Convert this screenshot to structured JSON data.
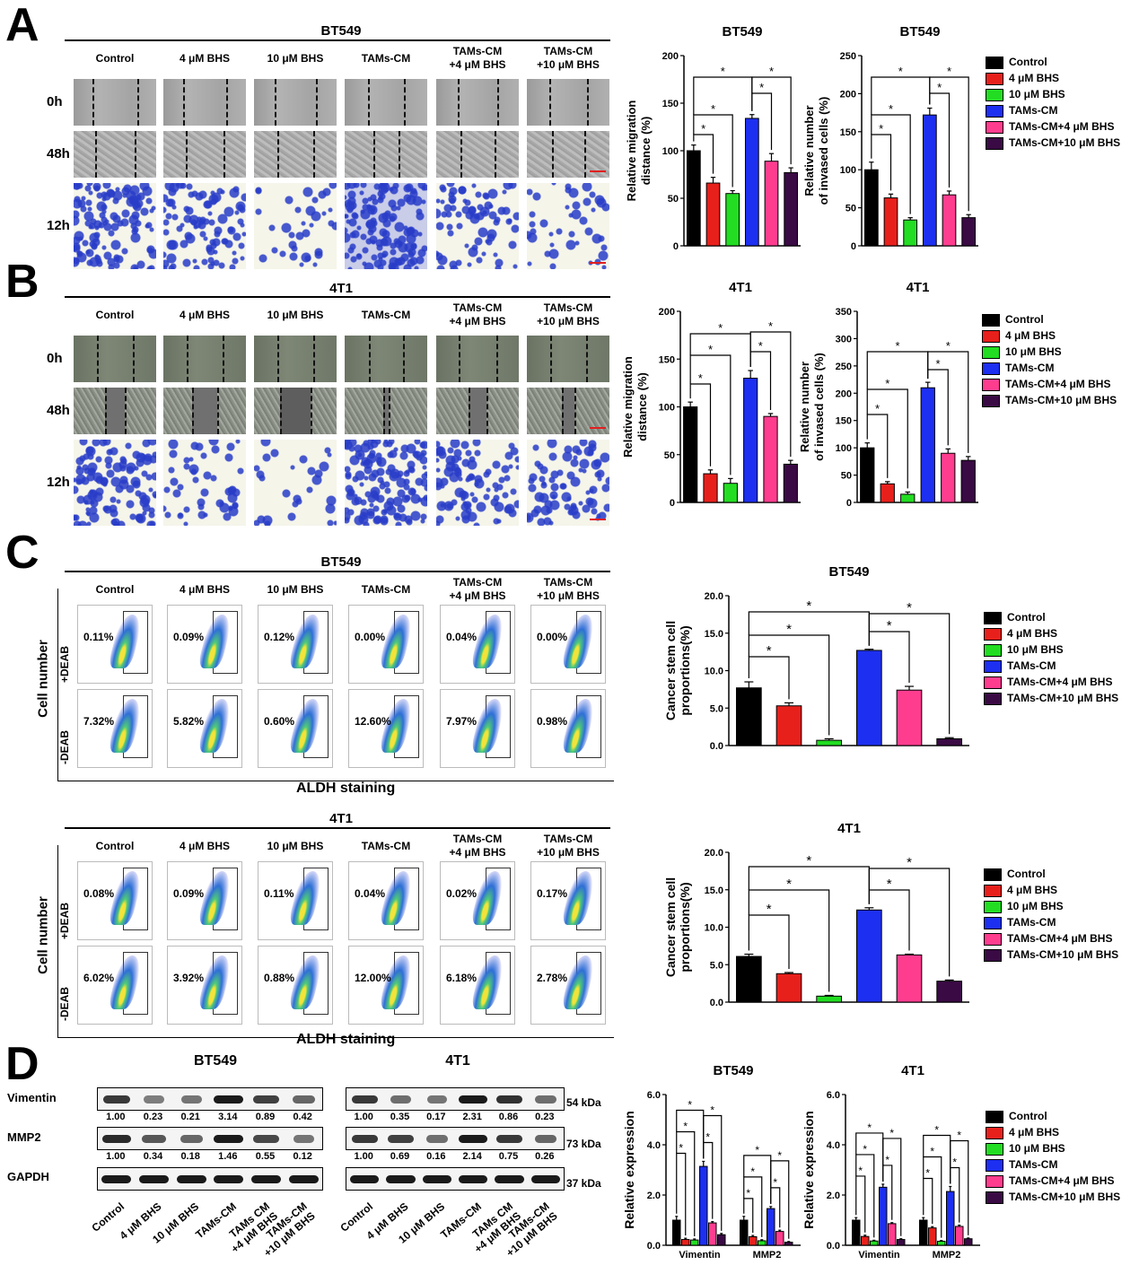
{
  "colors": {
    "control": "#000000",
    "bhs4": "#e8201c",
    "bhs10": "#22dd22",
    "tams": "#1d2ff0",
    "tams4": "#ff3d8f",
    "tams10": "#3a0a44"
  },
  "panels": {
    "A": "A",
    "B": "B",
    "C": "C",
    "D": "D"
  },
  "columns": {
    "control": "Control",
    "bhs4": "4 μM BHS",
    "bhs10": "10 μM BHS",
    "tams": "TAMs-CM",
    "tams4_l1": "TAMs-CM",
    "tams4_l2": "+4 μM BHS",
    "tams10_l1": "TAMs-CM",
    "tams10_l2": "+10 μM BHS"
  },
  "rows": {
    "r0": "0h",
    "r48": "48h",
    "r12": "12h"
  },
  "panelA": {
    "title": "BT549"
  },
  "panelB": {
    "title": "4T1"
  },
  "panelC": {
    "bt_title": "BT549",
    "t1_title": "4T1",
    "ylabel": "Cell number",
    "xlabel": "ALDH staining",
    "plus_deab": "+DEAB",
    "minus_deab": "-DEAB",
    "bt_plus": [
      "0.11%",
      "0.09%",
      "0.12%",
      "0.00%",
      "0.04%",
      "0.00%"
    ],
    "bt_minus": [
      "7.32%",
      "5.82%",
      "0.60%",
      "12.60%",
      "7.97%",
      "0.98%"
    ],
    "t1_plus": [
      "0.08%",
      "0.09%",
      "0.11%",
      "0.04%",
      "0.02%",
      "0.17%"
    ],
    "t1_minus": [
      "6.02%",
      "3.92%",
      "0.88%",
      "12.00%",
      "6.18%",
      "2.78%"
    ]
  },
  "panelD": {
    "bt_title": "BT549",
    "t1_title": "4T1",
    "vimentin": "Vimentin",
    "mmp2": "MMP2",
    "gapdh": "GAPDH",
    "kda54": "54 kDa",
    "kda73": "73 kDa",
    "kda37": "37 kDa",
    "bt_vim_vals": [
      "1.00",
      "0.23",
      "0.21",
      "3.14",
      "0.89",
      "0.42"
    ],
    "bt_mmp_vals": [
      "1.00",
      "0.34",
      "0.18",
      "1.46",
      "0.55",
      "0.12"
    ],
    "t1_vim_vals": [
      "1.00",
      "0.35",
      "0.17",
      "2.31",
      "0.86",
      "0.23"
    ],
    "t1_mmp_vals": [
      "1.00",
      "0.69",
      "0.16",
      "2.14",
      "0.75",
      "0.26"
    ],
    "lanes": [
      "Control",
      "4 μM BHS",
      "10 μM BHS",
      "TAMs-CM",
      "TAMs CM +4 μM BHS",
      "TAMs-CM +10 μM BHS"
    ]
  },
  "legend": {
    "items": [
      "Control",
      "4 μM BHS",
      "10 μM BHS",
      "TAMs-CM",
      "TAMs-CM+4 μM BHS",
      "TAMs-CM+10 μM BHS"
    ]
  },
  "chart_data": [
    {
      "id": "A-migration",
      "type": "bar",
      "title": "BT549",
      "ylabel": "Relative migration distance (%)",
      "ylim": [
        0,
        200
      ],
      "yticks": [
        0,
        50,
        100,
        150,
        200
      ],
      "categories": [
        "Control",
        "4 μM BHS",
        "10 μM BHS",
        "TAMs-CM",
        "TAMs-CM+4 μM BHS",
        "TAMs-CM+10 μM BHS"
      ],
      "values": [
        100,
        66,
        55,
        134,
        89,
        77
      ],
      "errors": [
        6,
        6,
        3,
        4,
        8,
        5
      ],
      "significance": "*"
    },
    {
      "id": "A-invasion",
      "type": "bar",
      "title": "BT549",
      "ylabel": "Relative number of invased cells (%)",
      "ylim": [
        0,
        250
      ],
      "yticks": [
        0,
        50,
        100,
        150,
        200,
        250
      ],
      "categories": [
        "Control",
        "4 μM BHS",
        "10 μM BHS",
        "TAMs-CM",
        "TAMs-CM+4 μM BHS",
        "TAMs-CM+10 μM BHS"
      ],
      "values": [
        100,
        63,
        34,
        172,
        67,
        37
      ],
      "errors": [
        10,
        5,
        3,
        9,
        5,
        4
      ],
      "significance": "*"
    },
    {
      "id": "B-migration",
      "type": "bar",
      "title": "4T1",
      "ylabel": "Relative migration distance (%)",
      "ylim": [
        0,
        200
      ],
      "yticks": [
        0,
        50,
        100,
        150,
        200
      ],
      "categories": [
        "Control",
        "4 μM BHS",
        "10 μM BHS",
        "TAMs-CM",
        "TAMs-CM+4 μM BHS",
        "TAMs-CM+10 μM BHS"
      ],
      "values": [
        100,
        30,
        20,
        130,
        90,
        40
      ],
      "errors": [
        5,
        4,
        5,
        8,
        3,
        4
      ],
      "significance": "*"
    },
    {
      "id": "B-invasion",
      "type": "bar",
      "title": "4T1",
      "ylabel": "Relative number of invased cells (%)",
      "ylim": [
        0,
        350
      ],
      "yticks": [
        0,
        50,
        100,
        150,
        200,
        250,
        300,
        350
      ],
      "categories": [
        "Control",
        "4 μM BHS",
        "10 μM BHS",
        "TAMs-CM",
        "TAMs-CM+4 μM BHS",
        "TAMs-CM+10 μM BHS"
      ],
      "values": [
        100,
        34,
        15,
        210,
        90,
        77
      ],
      "errors": [
        9,
        4,
        4,
        10,
        8,
        7
      ],
      "significance": "*"
    },
    {
      "id": "C-BT549",
      "type": "bar",
      "title": "BT549",
      "ylabel": "Cancer stem cell proportions(%)",
      "ylim": [
        0,
        20
      ],
      "yticks": [
        "0.0",
        "5.0",
        "10.0",
        "15.0",
        "20.0"
      ],
      "categories": [
        "Control",
        "4 μM BHS",
        "10 μM BHS",
        "TAMs-CM",
        "TAMs-CM+4 μM BHS",
        "TAMs-CM+10 μM BHS"
      ],
      "values": [
        7.7,
        5.3,
        0.7,
        12.7,
        7.4,
        0.9
      ],
      "errors": [
        0.8,
        0.4,
        0.2,
        0.15,
        0.5,
        0.15
      ],
      "significance": "*"
    },
    {
      "id": "C-4T1",
      "type": "bar",
      "title": "4T1",
      "ylabel": "Cancer stem cell proportions(%)",
      "ylim": [
        0,
        20
      ],
      "yticks": [
        "0.0",
        "5.0",
        "10.0",
        "15.0",
        "20.0"
      ],
      "categories": [
        "Control",
        "4 μM BHS",
        "10 μM BHS",
        "TAMs-CM",
        "TAMs-CM+4 μM BHS",
        "TAMs-CM+10 μM BHS"
      ],
      "values": [
        6.1,
        3.8,
        0.8,
        12.3,
        6.3,
        2.8
      ],
      "errors": [
        0.3,
        0.15,
        0.1,
        0.3,
        0.1,
        0.15
      ],
      "significance": "*"
    },
    {
      "id": "D-BT549",
      "type": "bar",
      "title": "BT549",
      "ylabel": "Relative expression",
      "ylim": [
        0,
        6
      ],
      "yticks": [
        "0.0",
        "2.0",
        "4.0",
        "6.0"
      ],
      "categories": [
        "Vimentin",
        "MMP2"
      ],
      "series": [
        {
          "name": "Control",
          "values": [
            1.0,
            1.0
          ],
          "errors": [
            0.15,
            0.15
          ]
        },
        {
          "name": "4 μM BHS",
          "values": [
            0.23,
            0.34
          ],
          "errors": [
            0.05,
            0.05
          ]
        },
        {
          "name": "10 μM BHS",
          "values": [
            0.21,
            0.18
          ],
          "errors": [
            0.04,
            0.04
          ]
        },
        {
          "name": "TAMs-CM",
          "values": [
            3.14,
            1.46
          ],
          "errors": [
            0.2,
            0.08
          ]
        },
        {
          "name": "TAMs-CM+4 μM BHS",
          "values": [
            0.89,
            0.55
          ],
          "errors": [
            0.05,
            0.05
          ]
        },
        {
          "name": "TAMs-CM+10 μM BHS",
          "values": [
            0.42,
            0.12
          ],
          "errors": [
            0.05,
            0.03
          ]
        }
      ],
      "significance": "*"
    },
    {
      "id": "D-4T1",
      "type": "bar",
      "title": "4T1",
      "ylabel": "Relative expression",
      "ylim": [
        0,
        6
      ],
      "yticks": [
        "0.0",
        "2.0",
        "4.0",
        "6.0"
      ],
      "categories": [
        "Vimentin",
        "MMP2"
      ],
      "series": [
        {
          "name": "Control",
          "values": [
            1.0,
            1.0
          ],
          "errors": [
            0.1,
            0.1
          ]
        },
        {
          "name": "4 μM BHS",
          "values": [
            0.35,
            0.69
          ],
          "errors": [
            0.05,
            0.05
          ]
        },
        {
          "name": "10 μM BHS",
          "values": [
            0.17,
            0.16
          ],
          "errors": [
            0.03,
            0.03
          ]
        },
        {
          "name": "TAMs-CM",
          "values": [
            2.31,
            2.14
          ],
          "errors": [
            0.12,
            0.2
          ]
        },
        {
          "name": "TAMs-CM+4 μM BHS",
          "values": [
            0.86,
            0.75
          ],
          "errors": [
            0.04,
            0.05
          ]
        },
        {
          "name": "TAMs-CM+10 μM BHS",
          "values": [
            0.23,
            0.26
          ],
          "errors": [
            0.03,
            0.03
          ]
        }
      ],
      "significance": "*"
    }
  ]
}
